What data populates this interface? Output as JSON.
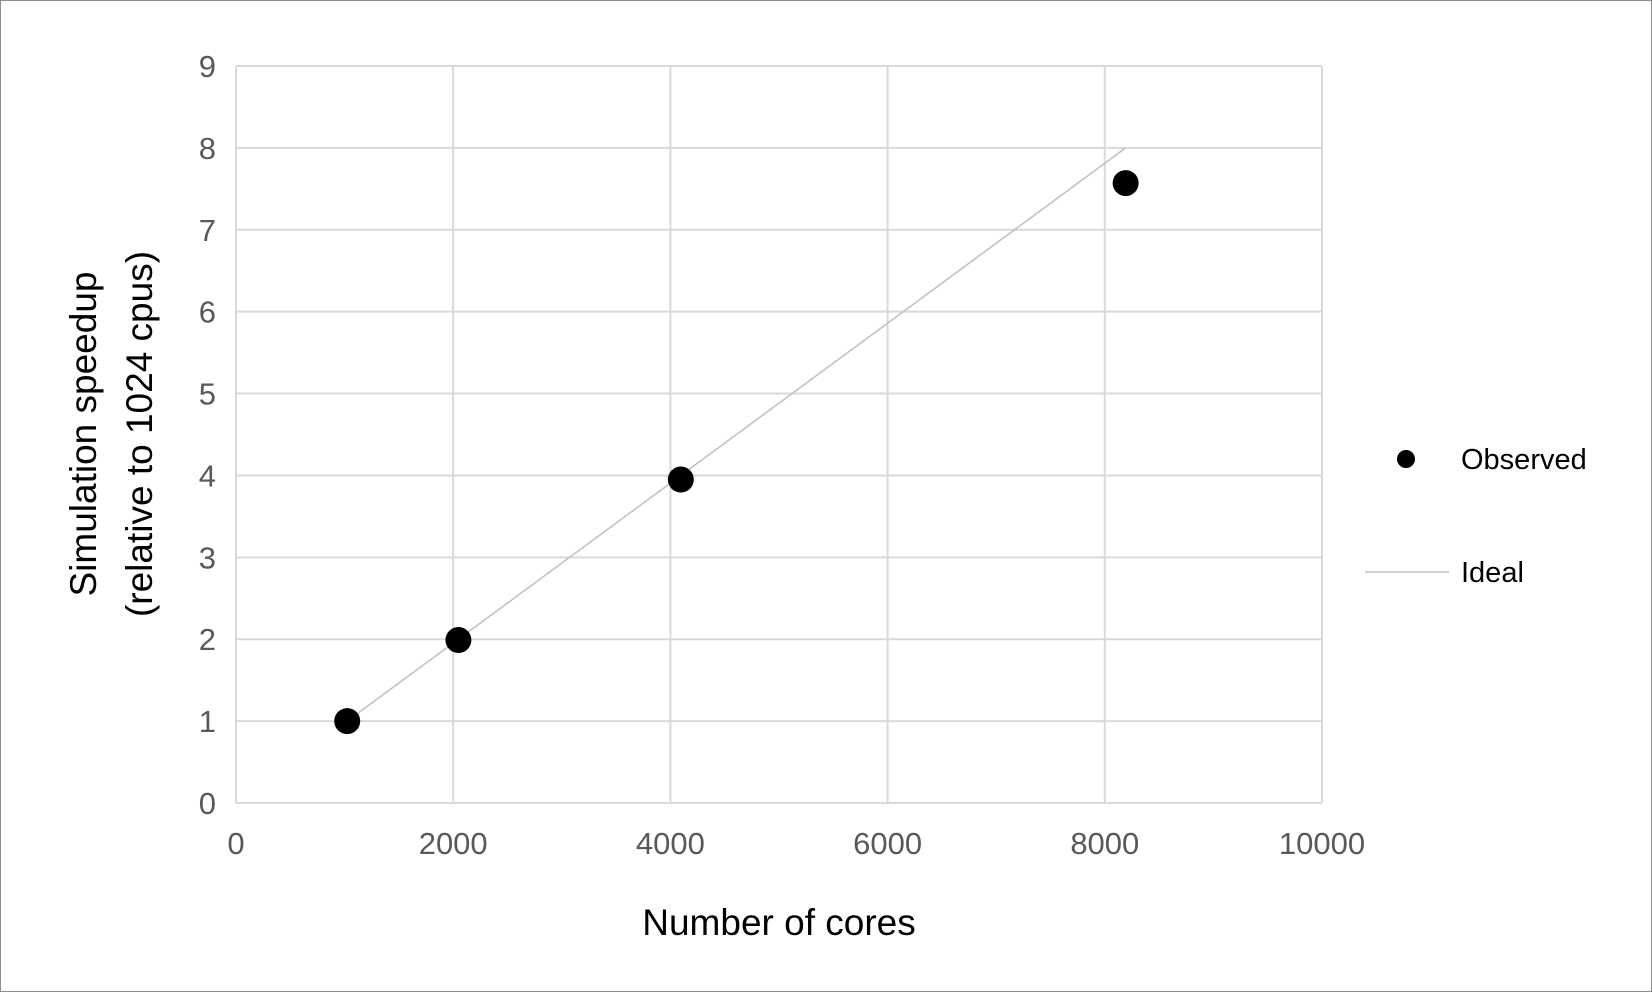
{
  "chart_data": {
    "type": "scatter",
    "title": "",
    "xlabel": "Number of cores",
    "ylabel_line1": "Simulation speedup",
    "ylabel_line2": "(relative to 1024 cpus)",
    "xlim": [
      0,
      10000
    ],
    "ylim": [
      0,
      9
    ],
    "x_ticks": [
      0,
      2000,
      4000,
      6000,
      8000,
      10000
    ],
    "y_ticks": [
      0,
      1,
      2,
      3,
      4,
      5,
      6,
      7,
      8,
      9
    ],
    "grid": true,
    "legend_position": "right",
    "series": [
      {
        "name": "Observed",
        "type": "scatter",
        "color": "#000000",
        "points": [
          {
            "x": 1024,
            "y": 1.0
          },
          {
            "x": 2048,
            "y": 1.99
          },
          {
            "x": 4096,
            "y": 3.95
          },
          {
            "x": 8192,
            "y": 7.57
          }
        ]
      },
      {
        "name": "Ideal",
        "type": "line",
        "color": "#bfbfbf",
        "points": [
          {
            "x": 1024,
            "y": 1
          },
          {
            "x": 8192,
            "y": 8
          }
        ]
      }
    ]
  }
}
